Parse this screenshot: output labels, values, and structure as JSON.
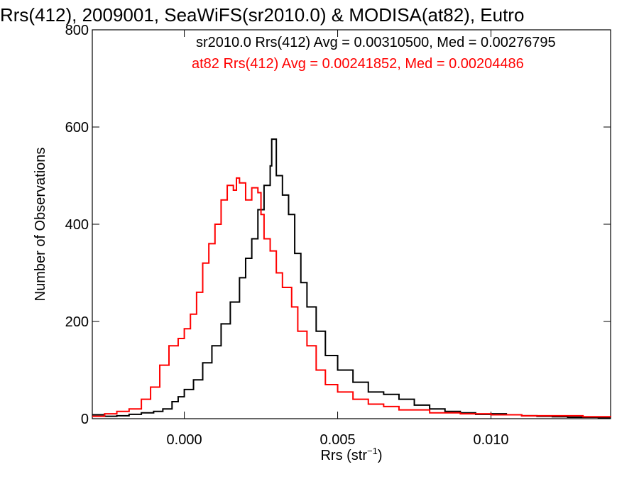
{
  "chart_data": {
    "type": "line",
    "title": "Rrs(412), 2009001, SeaWiFS(sr2010.0) & MODISA(at82), Eutro",
    "xlabel": "Rrs (str",
    "xlabel_sup": "−1",
    "xlabel_close": ")",
    "ylabel": "Number of Observations",
    "xlim": [
      -0.003,
      0.0139
    ],
    "ylim": [
      0,
      800
    ],
    "x_ticks": [
      0.0,
      0.005,
      0.01
    ],
    "x_tick_labels": [
      "0.000",
      "0.005",
      "0.010"
    ],
    "y_ticks": [
      0,
      200,
      400,
      600,
      800
    ],
    "y_tick_labels": [
      "0",
      "200",
      "400",
      "600",
      "800"
    ],
    "grid": false,
    "legend_position": "top",
    "series": [
      {
        "name": "sr2010.0",
        "legend_text": "sr2010.0 Rrs(412) Avg = 0.00310500, Med = 0.00276795",
        "color": "#000000",
        "points": [
          [
            -0.003,
            8
          ],
          [
            -0.0026,
            5
          ],
          [
            -0.0022,
            6
          ],
          [
            -0.0018,
            9
          ],
          [
            -0.0014,
            12
          ],
          [
            -0.001,
            15
          ],
          [
            -0.0007,
            20
          ],
          [
            -0.0004,
            35
          ],
          [
            -0.0002,
            45
          ],
          [
            0.0,
            60
          ],
          [
            0.0003,
            80
          ],
          [
            0.0006,
            115
          ],
          [
            0.0009,
            150
          ],
          [
            0.0012,
            195
          ],
          [
            0.0015,
            240
          ],
          [
            0.0018,
            290
          ],
          [
            0.002,
            330
          ],
          [
            0.0022,
            370
          ],
          [
            0.0024,
            430
          ],
          [
            0.0026,
            480
          ],
          [
            0.0028,
            520
          ],
          [
            0.00285,
            575
          ],
          [
            0.003,
            500
          ],
          [
            0.0032,
            460
          ],
          [
            0.0034,
            420
          ],
          [
            0.0036,
            340
          ],
          [
            0.0038,
            280
          ],
          [
            0.004,
            230
          ],
          [
            0.0043,
            180
          ],
          [
            0.0046,
            130
          ],
          [
            0.005,
            100
          ],
          [
            0.0055,
            75
          ],
          [
            0.006,
            55
          ],
          [
            0.0065,
            50
          ],
          [
            0.007,
            40
          ],
          [
            0.0075,
            28
          ],
          [
            0.008,
            20
          ],
          [
            0.0085,
            15
          ],
          [
            0.009,
            12
          ],
          [
            0.0095,
            9
          ],
          [
            0.01,
            10
          ],
          [
            0.0105,
            8
          ],
          [
            0.011,
            6
          ],
          [
            0.0115,
            5
          ],
          [
            0.012,
            4
          ],
          [
            0.0125,
            3
          ],
          [
            0.013,
            3
          ],
          [
            0.0135,
            2
          ],
          [
            0.0139,
            2
          ]
        ]
      },
      {
        "name": "at82",
        "legend_text": "at82 Rrs(412) Avg = 0.00241852, Med = 0.00204486",
        "color": "#ff0000",
        "points": [
          [
            -0.003,
            5
          ],
          [
            -0.0026,
            10
          ],
          [
            -0.0022,
            15
          ],
          [
            -0.0018,
            20
          ],
          [
            -0.0014,
            40
          ],
          [
            -0.0011,
            65
          ],
          [
            -0.0008,
            110
          ],
          [
            -0.0005,
            150
          ],
          [
            -0.0002,
            165
          ],
          [
            0.0,
            185
          ],
          [
            0.0002,
            215
          ],
          [
            0.0004,
            260
          ],
          [
            0.0006,
            320
          ],
          [
            0.0008,
            360
          ],
          [
            0.001,
            400
          ],
          [
            0.0012,
            450
          ],
          [
            0.0014,
            480
          ],
          [
            0.0016,
            470
          ],
          [
            0.0017,
            495
          ],
          [
            0.0018,
            485
          ],
          [
            0.002,
            450
          ],
          [
            0.0022,
            475
          ],
          [
            0.0024,
            465
          ],
          [
            0.0025,
            420
          ],
          [
            0.0026,
            370
          ],
          [
            0.0028,
            345
          ],
          [
            0.003,
            300
          ],
          [
            0.0032,
            270
          ],
          [
            0.0035,
            230
          ],
          [
            0.0037,
            180
          ],
          [
            0.004,
            150
          ],
          [
            0.0043,
            100
          ],
          [
            0.0046,
            70
          ],
          [
            0.005,
            55
          ],
          [
            0.0055,
            40
          ],
          [
            0.006,
            30
          ],
          [
            0.0065,
            25
          ],
          [
            0.007,
            18
          ],
          [
            0.008,
            12
          ],
          [
            0.009,
            10
          ],
          [
            0.01,
            8
          ],
          [
            0.011,
            6
          ],
          [
            0.012,
            6
          ],
          [
            0.013,
            4
          ],
          [
            0.0139,
            3
          ]
        ]
      }
    ]
  }
}
